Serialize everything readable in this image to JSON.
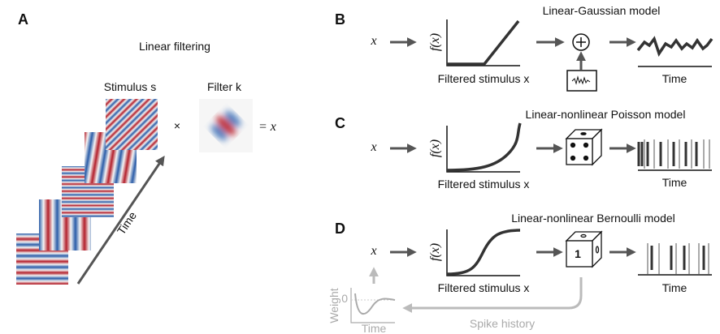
{
  "panels": [
    {
      "label": "A",
      "title": "Linear filtering",
      "stimulus_label": "Stimulus s",
      "filter_label": "Filter k",
      "times": "×",
      "equals": "= x",
      "time_label": "Time"
    },
    {
      "label": "B",
      "title": "Linear-Gaussian model",
      "input": "x",
      "y_label": "f(x)",
      "x_label": "Filtered stimulus x",
      "output_label": "Time"
    },
    {
      "label": "C",
      "title": "Linear-nonlinear Poisson model",
      "input": "x",
      "y_label": "f(x)",
      "x_label": "Filtered stimulus x",
      "output_label": "Time"
    },
    {
      "label": "D",
      "title": "Linear-nonlinear Bernoulli model",
      "input": "x",
      "y_label": "f(x)",
      "x_label": "Filtered stimulus x",
      "output_label": "Time",
      "die_face": "1",
      "history_y_label": "Weight",
      "history_zero": "0",
      "history_x_label": "Time",
      "history_label": "Spike history"
    }
  ]
}
